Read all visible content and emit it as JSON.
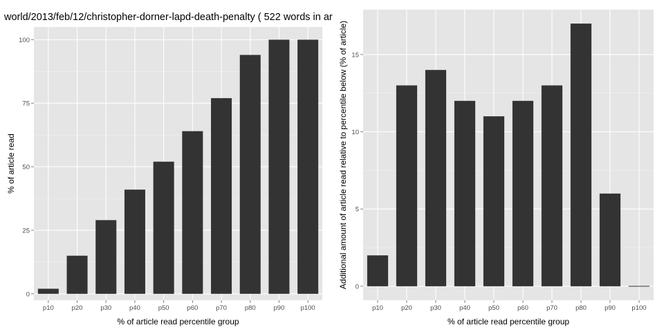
{
  "chart_data": [
    {
      "type": "bar",
      "title": "world/2013/feb/12/christopher-dorner-lapd-death-penalty ( 522 words in ar",
      "xlabel": "% of article read percentile group",
      "ylabel": "% of article read",
      "categories": [
        "p10",
        "p20",
        "p30",
        "p40",
        "p50",
        "p60",
        "p70",
        "p80",
        "p90",
        "p100"
      ],
      "values": [
        2,
        15,
        29,
        41,
        52,
        64,
        77,
        94,
        100,
        100
      ],
      "ylim": [
        -2.5,
        105
      ],
      "yticks": [
        0,
        25,
        50,
        75,
        100
      ],
      "grid": true,
      "colors": {
        "panel": "#e5e5e5",
        "grid": "#ffffff",
        "bar": "#333333"
      }
    },
    {
      "type": "bar",
      "title": "",
      "xlabel": "% of article read percentile group",
      "ylabel": "Additional amount of article read relative to percentile below (% of article)",
      "categories": [
        "p10",
        "p20",
        "p30",
        "p40",
        "p50",
        "p60",
        "p70",
        "p80",
        "p90",
        "p100"
      ],
      "values": [
        2,
        13,
        14,
        12,
        11,
        12,
        13,
        17,
        6,
        0
      ],
      "ylim": [
        -0.9,
        17.9
      ],
      "yticks": [
        0,
        5,
        10,
        15
      ],
      "grid": true,
      "colors": {
        "panel": "#e5e5e5",
        "grid": "#ffffff",
        "bar": "#333333"
      }
    }
  ]
}
